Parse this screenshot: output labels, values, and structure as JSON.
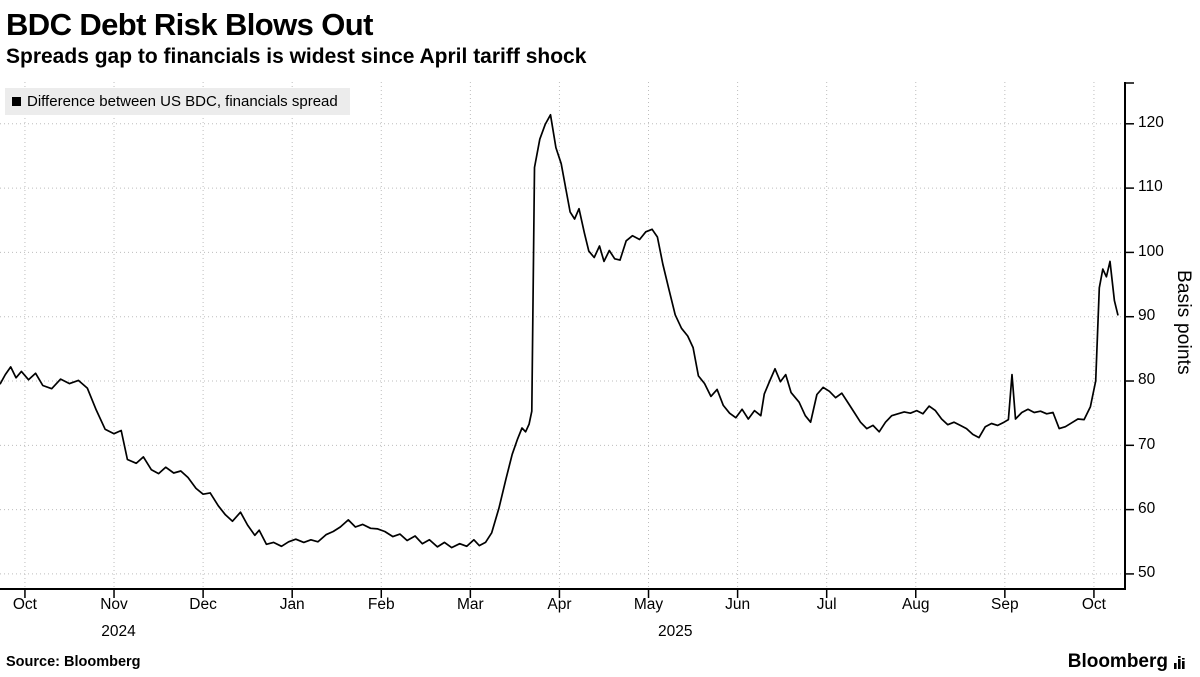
{
  "header": {
    "title": "BDC Debt Risk Blows Out",
    "subtitle": "Spreads gap to financials is widest since April tariff shock"
  },
  "legend": {
    "label": "Difference between US BDC, financials spread"
  },
  "footer": {
    "source": "Source: Bloomberg",
    "brand": "Bloomberg"
  },
  "colors": {
    "line": "#000000",
    "grid": "#bdbdbd",
    "axis": "#000000",
    "legend_bg": "#ececec"
  },
  "icons": {
    "legend_marker": "black-square",
    "bloomberg_bars": "bar-chart-glyph"
  },
  "chart_data": {
    "type": "line",
    "title": "BDC Debt Risk Blows Out",
    "series_name": "Difference between US BDC, financials spread",
    "ylabel": "Basis points",
    "grid": true,
    "legend_position": "top-left",
    "ylim": [
      47.5,
      126.5
    ],
    "y_ticks": [
      50,
      60,
      70,
      80,
      90,
      100,
      110,
      120
    ],
    "x_domain_months": [
      -0.28,
      12.36
    ],
    "x_ticks": [
      {
        "label": "Oct",
        "t": 0
      },
      {
        "label": "Nov",
        "t": 1
      },
      {
        "label": "Dec",
        "t": 2
      },
      {
        "label": "Jan",
        "t": 3
      },
      {
        "label": "Feb",
        "t": 4
      },
      {
        "label": "Mar",
        "t": 5
      },
      {
        "label": "Apr",
        "t": 6
      },
      {
        "label": "May",
        "t": 7
      },
      {
        "label": "Jun",
        "t": 8
      },
      {
        "label": "Jul",
        "t": 9
      },
      {
        "label": "Aug",
        "t": 10
      },
      {
        "label": "Sep",
        "t": 11
      },
      {
        "label": "Oct",
        "t": 12
      }
    ],
    "year_labels": [
      {
        "label": "2024",
        "t": 1.05
      },
      {
        "label": "2025",
        "t": 7.3
      }
    ],
    "points": [
      [
        -0.28,
        79.5
      ],
      [
        -0.22,
        81.0
      ],
      [
        -0.16,
        82.2
      ],
      [
        -0.1,
        80.5
      ],
      [
        -0.04,
        81.5
      ],
      [
        0.04,
        80.2
      ],
      [
        0.12,
        81.2
      ],
      [
        0.2,
        79.3
      ],
      [
        0.3,
        78.8
      ],
      [
        0.4,
        80.3
      ],
      [
        0.5,
        79.6
      ],
      [
        0.6,
        80.1
      ],
      [
        0.7,
        78.9
      ],
      [
        0.8,
        75.5
      ],
      [
        0.9,
        72.5
      ],
      [
        1.0,
        71.8
      ],
      [
        1.08,
        72.3
      ],
      [
        1.15,
        67.8
      ],
      [
        1.25,
        67.2
      ],
      [
        1.33,
        68.2
      ],
      [
        1.42,
        66.2
      ],
      [
        1.5,
        65.6
      ],
      [
        1.58,
        66.6
      ],
      [
        1.67,
        65.7
      ],
      [
        1.75,
        66.0
      ],
      [
        1.83,
        65.0
      ],
      [
        1.92,
        63.3
      ],
      [
        2.0,
        62.4
      ],
      [
        2.08,
        62.6
      ],
      [
        2.17,
        60.6
      ],
      [
        2.25,
        59.2
      ],
      [
        2.33,
        58.2
      ],
      [
        2.42,
        59.6
      ],
      [
        2.5,
        57.6
      ],
      [
        2.58,
        56.0
      ],
      [
        2.63,
        56.8
      ],
      [
        2.71,
        54.6
      ],
      [
        2.79,
        54.9
      ],
      [
        2.88,
        54.3
      ],
      [
        2.96,
        55.0
      ],
      [
        3.04,
        55.4
      ],
      [
        3.13,
        54.9
      ],
      [
        3.21,
        55.3
      ],
      [
        3.29,
        55.0
      ],
      [
        3.38,
        56.1
      ],
      [
        3.46,
        56.6
      ],
      [
        3.54,
        57.3
      ],
      [
        3.63,
        58.4
      ],
      [
        3.71,
        57.3
      ],
      [
        3.79,
        57.7
      ],
      [
        3.88,
        57.1
      ],
      [
        3.96,
        57.0
      ],
      [
        4.04,
        56.6
      ],
      [
        4.13,
        55.8
      ],
      [
        4.21,
        56.2
      ],
      [
        4.29,
        55.2
      ],
      [
        4.38,
        55.9
      ],
      [
        4.46,
        54.7
      ],
      [
        4.54,
        55.3
      ],
      [
        4.63,
        54.2
      ],
      [
        4.71,
        54.9
      ],
      [
        4.79,
        54.1
      ],
      [
        4.88,
        54.7
      ],
      [
        4.96,
        54.3
      ],
      [
        5.04,
        55.3
      ],
      [
        5.1,
        54.4
      ],
      [
        5.17,
        54.9
      ],
      [
        5.24,
        56.4
      ],
      [
        5.32,
        60.2
      ],
      [
        5.4,
        64.8
      ],
      [
        5.47,
        68.6
      ],
      [
        5.53,
        71.0
      ],
      [
        5.58,
        72.7
      ],
      [
        5.62,
        72.1
      ],
      [
        5.66,
        73.3
      ],
      [
        5.69,
        75.3
      ],
      [
        5.72,
        113.2
      ],
      [
        5.78,
        117.6
      ],
      [
        5.84,
        119.9
      ],
      [
        5.9,
        121.4
      ],
      [
        5.96,
        116.3
      ],
      [
        6.02,
        113.8
      ],
      [
        6.07,
        110.0
      ],
      [
        6.12,
        106.3
      ],
      [
        6.17,
        105.2
      ],
      [
        6.22,
        106.8
      ],
      [
        6.28,
        103.0
      ],
      [
        6.33,
        100.2
      ],
      [
        6.39,
        99.2
      ],
      [
        6.45,
        101.0
      ],
      [
        6.5,
        98.6
      ],
      [
        6.56,
        100.3
      ],
      [
        6.62,
        99.0
      ],
      [
        6.68,
        98.8
      ],
      [
        6.75,
        101.8
      ],
      [
        6.82,
        102.6
      ],
      [
        6.9,
        102.0
      ],
      [
        6.97,
        103.2
      ],
      [
        7.04,
        103.6
      ],
      [
        7.1,
        102.4
      ],
      [
        7.16,
        98.2
      ],
      [
        7.23,
        94.2
      ],
      [
        7.3,
        90.3
      ],
      [
        7.37,
        88.2
      ],
      [
        7.44,
        87.0
      ],
      [
        7.5,
        85.2
      ],
      [
        7.56,
        80.8
      ],
      [
        7.63,
        79.6
      ],
      [
        7.7,
        77.6
      ],
      [
        7.77,
        78.7
      ],
      [
        7.84,
        76.2
      ],
      [
        7.91,
        75.0
      ],
      [
        7.98,
        74.3
      ],
      [
        8.05,
        75.6
      ],
      [
        8.12,
        74.1
      ],
      [
        8.19,
        75.4
      ],
      [
        8.26,
        74.6
      ],
      [
        8.3,
        78.0
      ],
      [
        8.36,
        80.0
      ],
      [
        8.42,
        81.9
      ],
      [
        8.48,
        79.9
      ],
      [
        8.54,
        81.0
      ],
      [
        8.6,
        78.2
      ],
      [
        8.69,
        76.7
      ],
      [
        8.76,
        74.6
      ],
      [
        8.82,
        73.6
      ],
      [
        8.89,
        77.9
      ],
      [
        8.96,
        79.0
      ],
      [
        9.03,
        78.4
      ],
      [
        9.1,
        77.4
      ],
      [
        9.17,
        78.1
      ],
      [
        9.24,
        76.6
      ],
      [
        9.31,
        75.1
      ],
      [
        9.38,
        73.6
      ],
      [
        9.45,
        72.6
      ],
      [
        9.52,
        73.1
      ],
      [
        9.59,
        72.1
      ],
      [
        9.66,
        73.6
      ],
      [
        9.73,
        74.6
      ],
      [
        9.8,
        74.9
      ],
      [
        9.87,
        75.2
      ],
      [
        9.94,
        75.0
      ],
      [
        10.01,
        75.4
      ],
      [
        10.08,
        74.9
      ],
      [
        10.15,
        76.1
      ],
      [
        10.22,
        75.4
      ],
      [
        10.29,
        74.1
      ],
      [
        10.36,
        73.2
      ],
      [
        10.43,
        73.6
      ],
      [
        10.5,
        73.1
      ],
      [
        10.57,
        72.6
      ],
      [
        10.64,
        71.7
      ],
      [
        10.71,
        71.2
      ],
      [
        10.78,
        72.9
      ],
      [
        10.85,
        73.4
      ],
      [
        10.92,
        73.1
      ],
      [
        10.99,
        73.6
      ],
      [
        11.04,
        74.0
      ],
      [
        11.08,
        81.0
      ],
      [
        11.12,
        74.1
      ],
      [
        11.19,
        75.1
      ],
      [
        11.26,
        75.6
      ],
      [
        11.33,
        75.1
      ],
      [
        11.4,
        75.3
      ],
      [
        11.47,
        74.9
      ],
      [
        11.54,
        75.1
      ],
      [
        11.61,
        72.6
      ],
      [
        11.68,
        72.9
      ],
      [
        11.75,
        73.5
      ],
      [
        11.82,
        74.1
      ],
      [
        11.89,
        74.0
      ],
      [
        11.96,
        76.0
      ],
      [
        12.02,
        80.0
      ],
      [
        12.06,
        94.5
      ],
      [
        12.1,
        97.4
      ],
      [
        12.14,
        96.2
      ],
      [
        12.18,
        98.6
      ],
      [
        12.23,
        92.5
      ],
      [
        12.27,
        90.2
      ]
    ]
  }
}
